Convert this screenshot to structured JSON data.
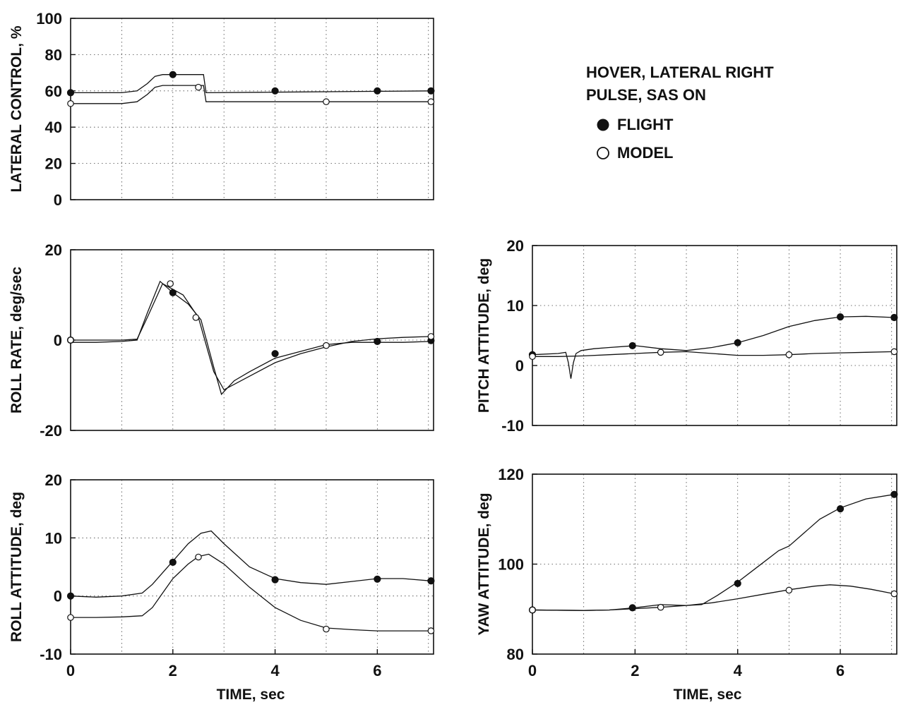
{
  "legend": {
    "line1": "HOVER, LATERAL RIGHT",
    "line2": "PULSE, SAS ON",
    "flight": "FLIGHT",
    "model": "MODEL"
  },
  "chart_data": [
    {
      "id": "lateral",
      "type": "line",
      "ylabel": "LATERAL CONTROL, %",
      "xlabel": "",
      "xlim": [
        0,
        7.1
      ],
      "ylim": [
        0,
        100
      ],
      "yticks": [
        0,
        20,
        40,
        60,
        80,
        100
      ],
      "xticks": [],
      "grid": true,
      "series": [
        {
          "name": "FLIGHT",
          "x": [
            0,
            1.0,
            1.3,
            1.5,
            1.65,
            1.8,
            2.6,
            2.65,
            7.1
          ],
          "y": [
            59,
            59,
            60,
            64,
            68,
            69,
            69,
            59,
            60
          ],
          "markers_x": [
            0,
            2,
            4,
            6,
            7.05
          ],
          "markers_y": [
            59,
            69,
            60,
            60,
            60
          ]
        },
        {
          "name": "MODEL",
          "x": [
            0,
            1.0,
            1.3,
            1.5,
            1.65,
            1.8,
            2.6,
            2.65,
            7.1
          ],
          "y": [
            53,
            53,
            54,
            58,
            62,
            63,
            63,
            54,
            54
          ],
          "markers_x": [
            0,
            2.5,
            5,
            7.05
          ],
          "markers_y": [
            53,
            62,
            54,
            54
          ]
        }
      ]
    },
    {
      "id": "rollrate",
      "type": "line",
      "ylabel": "ROLL RATE, deg/sec",
      "xlabel": "",
      "xlim": [
        0,
        7.1
      ],
      "ylim": [
        -20,
        20
      ],
      "yticks": [
        -20,
        0,
        20
      ],
      "xticks": [],
      "grid": true,
      "series": [
        {
          "name": "FLIGHT",
          "x": [
            0,
            0.5,
            1.0,
            1.3,
            1.5,
            1.75,
            2.0,
            2.3,
            2.55,
            2.8,
            2.95,
            3.2,
            3.5,
            4.0,
            4.5,
            5.0,
            5.5,
            6.0,
            6.5,
            7.05
          ],
          "y": [
            -0.5,
            -0.5,
            -0.3,
            0,
            6,
            13,
            10.5,
            8,
            4.5,
            -6,
            -12,
            -9,
            -7,
            -4,
            -2.5,
            -1,
            -0.5,
            -0.5,
            -0.5,
            -0.3
          ],
          "markers_x": [
            0,
            2,
            4,
            6,
            7.05
          ],
          "markers_y": [
            0,
            10.5,
            -3,
            -0.3,
            -0.1
          ]
        },
        {
          "name": "MODEL",
          "x": [
            0,
            1.0,
            1.3,
            1.5,
            1.8,
            2.2,
            2.5,
            2.8,
            3.0,
            3.5,
            4.0,
            4.5,
            5.0,
            5.5,
            6.0,
            6.5,
            7.05
          ],
          "y": [
            0,
            0,
            0.2,
            5,
            12.5,
            10,
            5,
            -7,
            -11,
            -8,
            -5,
            -3,
            -1.5,
            -0.3,
            0.3,
            0.6,
            0.8
          ],
          "markers_x": [
            0,
            1.95,
            2.45,
            5,
            7.05
          ],
          "markers_y": [
            0,
            12.5,
            5,
            -1.2,
            0.8
          ]
        }
      ]
    },
    {
      "id": "rollatt",
      "type": "line",
      "ylabel": "ROLL ATTITUDE, deg",
      "xlabel": "TIME, sec",
      "xlim": [
        0,
        7.1
      ],
      "ylim": [
        -10,
        20
      ],
      "yticks": [
        -10,
        0,
        10,
        20
      ],
      "xticks": [
        0,
        2,
        4,
        6
      ],
      "grid": true,
      "series": [
        {
          "name": "FLIGHT",
          "x": [
            0,
            0.5,
            1.0,
            1.4,
            1.6,
            1.8,
            2.0,
            2.3,
            2.55,
            2.75,
            3.0,
            3.5,
            4.0,
            4.5,
            5.0,
            5.5,
            6.0,
            6.5,
            7.05
          ],
          "y": [
            0,
            -0.2,
            0,
            0.5,
            2,
            4,
            6,
            9,
            10.8,
            11.2,
            9,
            5,
            3,
            2.3,
            2,
            2.5,
            3,
            3,
            2.6
          ],
          "markers_x": [
            0,
            2,
            4,
            6,
            7.05
          ],
          "markers_y": [
            0,
            5.8,
            2.8,
            2.9,
            2.6
          ]
        },
        {
          "name": "MODEL",
          "x": [
            0,
            0.5,
            1.0,
            1.4,
            1.6,
            1.8,
            2.0,
            2.3,
            2.5,
            2.7,
            3.0,
            3.5,
            4.0,
            4.5,
            5.0,
            5.5,
            6.0,
            6.5,
            7.05
          ],
          "y": [
            -3.7,
            -3.7,
            -3.6,
            -3.4,
            -2,
            0.5,
            3,
            5.5,
            6.8,
            7.2,
            5.5,
            1.5,
            -2,
            -4.2,
            -5.5,
            -5.8,
            -6,
            -6,
            -6
          ],
          "markers_x": [
            0,
            2.5,
            5,
            7.05
          ],
          "markers_y": [
            -3.7,
            6.7,
            -5.7,
            -6
          ]
        }
      ]
    },
    {
      "id": "pitch",
      "type": "line",
      "ylabel": "PITCH ATTITUDE, deg",
      "xlabel": "",
      "xlim": [
        0,
        7.1
      ],
      "ylim": [
        -10,
        20
      ],
      "yticks": [
        -10,
        0,
        10,
        20
      ],
      "xticks": [],
      "grid": true,
      "series": [
        {
          "name": "FLIGHT",
          "x": [
            0,
            0.5,
            0.65,
            0.7,
            0.75,
            0.8,
            0.85,
            0.95,
            1.2,
            1.5,
            2.0,
            2.5,
            3.0,
            3.5,
            4.0,
            4.5,
            5.0,
            5.5,
            6.0,
            6.5,
            7.05
          ],
          "y": [
            1.8,
            2.0,
            2.2,
            0.5,
            -2.2,
            0.5,
            2.0,
            2.5,
            2.8,
            3.0,
            3.3,
            2.8,
            2.5,
            3.0,
            3.8,
            5.0,
            6.5,
            7.5,
            8.1,
            8.2,
            8.0
          ],
          "markers_x": [
            0,
            1.95,
            4,
            6,
            7.05
          ],
          "markers_y": [
            1.8,
            3.3,
            3.8,
            8.1,
            8.0
          ]
        },
        {
          "name": "MODEL",
          "x": [
            0,
            0.5,
            1.0,
            1.5,
            2.0,
            2.5,
            3.0,
            3.5,
            4.0,
            4.5,
            5.0,
            5.5,
            6.0,
            6.5,
            7.05
          ],
          "y": [
            1.5,
            1.5,
            1.6,
            1.8,
            2.0,
            2.2,
            2.3,
            2.0,
            1.7,
            1.7,
            1.8,
            2.0,
            2.1,
            2.2,
            2.3
          ],
          "markers_x": [
            0,
            2.5,
            5,
            7.05
          ],
          "markers_y": [
            1.5,
            2.2,
            1.8,
            2.3
          ]
        }
      ]
    },
    {
      "id": "yaw",
      "type": "line",
      "ylabel": "YAW ATTITUDE, deg",
      "xlabel": "TIME, sec",
      "xlim": [
        0,
        7.1
      ],
      "ylim": [
        80,
        120
      ],
      "yticks": [
        80,
        100,
        120
      ],
      "xticks": [
        0,
        2,
        4,
        6
      ],
      "grid": true,
      "series": [
        {
          "name": "FLIGHT",
          "x": [
            0,
            1.0,
            1.5,
            2.0,
            2.5,
            3.0,
            3.3,
            3.6,
            4.0,
            4.4,
            4.8,
            5.0,
            5.3,
            5.6,
            6.0,
            6.5,
            7.05
          ],
          "y": [
            89.8,
            89.7,
            89.8,
            90.3,
            91,
            90.8,
            91,
            93,
            96,
            99.5,
            103,
            104,
            107,
            110,
            112.5,
            114.5,
            115.5
          ],
          "markers_x": [
            0,
            1.95,
            4,
            6,
            7.05
          ],
          "markers_y": [
            89.8,
            90.3,
            95.7,
            112.3,
            115.5
          ]
        },
        {
          "name": "MODEL",
          "x": [
            0,
            1.0,
            1.5,
            2.0,
            2.5,
            3.0,
            3.5,
            4.0,
            4.5,
            5.0,
            5.5,
            5.8,
            6.2,
            6.6,
            7.05
          ],
          "y": [
            89.8,
            89.7,
            89.8,
            90.1,
            90.4,
            90.8,
            91.4,
            92.3,
            93.3,
            94.3,
            95.1,
            95.4,
            95.1,
            94.4,
            93.4
          ],
          "markers_x": [
            0,
            2.5,
            5,
            7.05
          ],
          "markers_y": [
            89.8,
            90.4,
            94.2,
            93.4
          ]
        }
      ]
    }
  ]
}
